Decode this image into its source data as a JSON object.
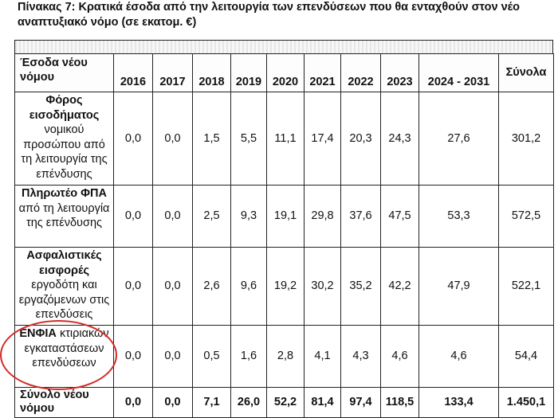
{
  "caption": "Πίνακας 7: Κρατικά έσοδα από την λειτουργία των επενδύσεων που θα ενταχθούν στον νέο αναπτυξιακό νόμο (σε εκατομ. €)",
  "header": {
    "corner_line1": "Έσοδα νέου",
    "corner_line2": "νόμου",
    "years": [
      "2016",
      "2017",
      "2018",
      "2019",
      "2020",
      "2021",
      "2022",
      "2023",
      "2024 - 2031"
    ],
    "total": "Σύνολα"
  },
  "rows": [
    {
      "label_bold": "Φόρος εισοδήματος",
      "label_rest": "νομικού προσώπου από τη λειτουργία της επένδυσης",
      "values": [
        "0,0",
        "0,0",
        "1,5",
        "5,5",
        "11,1",
        "17,4",
        "20,3",
        "24,3",
        "27,6",
        "301,2"
      ]
    },
    {
      "label_bold": "Πληρωτέο ΦΠΑ",
      "label_rest": "από τη λειτουργία της επένδυσης",
      "values": [
        "0,0",
        "0,0",
        "2,5",
        "9,3",
        "19,1",
        "29,8",
        "37,6",
        "47,5",
        "53,3",
        "572,5"
      ]
    },
    {
      "label_bold": "Ασφαλιστικές εισφορές",
      "label_rest": "εργοδότη και εργαζόμενων στις επενδύσεις",
      "values": [
        "0,0",
        "0,0",
        "2,6",
        "9,6",
        "19,2",
        "30,2",
        "35,2",
        "42,2",
        "47,9",
        "522,1"
      ]
    },
    {
      "label_bold": "ΕΝΦΙΑ",
      "label_rest": "κτιριακών εγκαταστάσεων επενδύσεων",
      "values": [
        "0,0",
        "0,0",
        "0,5",
        "1,6",
        "2,8",
        "4,1",
        "4,3",
        "4,6",
        "4,6",
        "54,4"
      ]
    }
  ],
  "total_row": {
    "label_line1": "Σύνολο νέου",
    "label_line2": "νόμου",
    "values": [
      "0,0",
      "0,0",
      "7,1",
      "26,0",
      "52,2",
      "81,4",
      "97,4",
      "118,5",
      "133,4",
      "1.450,1"
    ]
  },
  "annotation_color": "#d32b26"
}
